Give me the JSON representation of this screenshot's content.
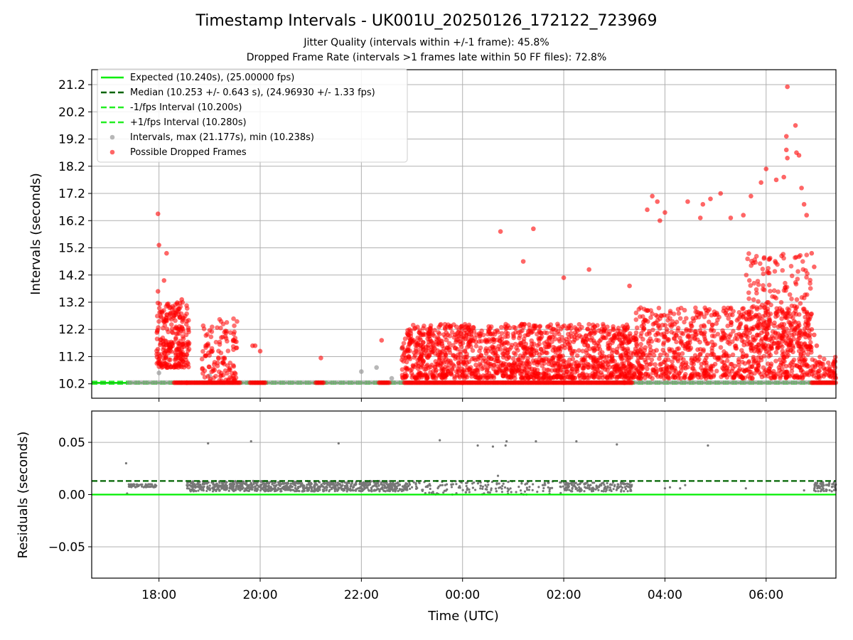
{
  "chart_data": [
    {
      "type": "scatter",
      "title": "Timestamp Intervals - UK001U_20250126_172122_723969",
      "subtitle_lines": [
        "Jitter Quality (intervals within +/-1 frame): 45.8%",
        "Dropped Frame Rate (intervals >1 frames late within 50 FF files): 72.8%"
      ],
      "xlabel": "",
      "ylabel": "Intervals (seconds)",
      "x_unit": "hours since 2025-01-26 00:00 UTC",
      "xlim": [
        16.67,
        31.38
      ],
      "ylim": [
        9.67,
        21.75
      ],
      "ytick_values": [
        10.2,
        11.2,
        12.2,
        13.2,
        14.2,
        15.2,
        16.2,
        17.2,
        18.2,
        19.2,
        20.2,
        21.2
      ],
      "ytick_labels": [
        "10.2",
        "11.2",
        "12.2",
        "13.2",
        "14.2",
        "15.2",
        "16.2",
        "17.2",
        "18.2",
        "19.2",
        "20.2",
        "21.2"
      ],
      "grid": true,
      "legend_placement": "upper-left",
      "legend": [
        {
          "label": "Expected (10.240s), (25.00000 fps)",
          "style": "solid",
          "color": "#00ee00"
        },
        {
          "label": "Median (10.253 +/- 0.643 s), (24.96930 +/- 1.33 fps)",
          "style": "dashed",
          "color": "#006400"
        },
        {
          "label": "-1/fps Interval (10.200s)",
          "style": "dashed",
          "color": "#22ee22"
        },
        {
          "label": "+1/fps Interval (10.280s)",
          "style": "dashed",
          "color": "#22ee22"
        },
        {
          "label": "Intervals, max (21.177s), min (10.238s)",
          "style": "marker",
          "color": "#999999"
        },
        {
          "label": "Possible Dropped Frames",
          "style": "marker",
          "color": "#ff0000"
        }
      ],
      "reference_lines": [
        {
          "name": "Expected",
          "y": 10.24,
          "color": "#00ee00",
          "style": "solid"
        },
        {
          "name": "Median",
          "y": 10.253,
          "color": "#006400",
          "style": "dashed"
        },
        {
          "name": "-1/fps Interval",
          "y": 10.2,
          "color": "#22ee22",
          "style": "dashed"
        },
        {
          "name": "+1/fps Interval",
          "y": 10.28,
          "color": "#22ee22",
          "style": "dashed"
        }
      ],
      "series": [
        {
          "name": "Intervals, max (21.177s), min (10.238s)",
          "color": "#999999",
          "x_range": [
            17.4,
            31.38
          ],
          "max": 21.177,
          "min": 10.238,
          "highlights": [
            [
              18.0,
              10.6
            ],
            [
              19.0,
              10.5
            ],
            [
              22.0,
              10.65
            ],
            [
              22.3,
              10.8
            ],
            [
              22.6,
              10.4
            ],
            [
              22.8,
              11.5
            ]
          ]
        },
        {
          "name": "Possible Dropped Frames",
          "color": "#ff0000",
          "baseline_y": 10.24,
          "baseline_segments": [
            [
              18.3,
              18.55
            ],
            [
              18.55,
              19.6
            ],
            [
              19.8,
              20.1
            ],
            [
              21.1,
              21.25
            ],
            [
              22.35,
              22.55
            ],
            [
              22.85,
              24.0
            ],
            [
              24.0,
              26.0
            ],
            [
              26.0,
              27.2
            ],
            [
              27.2,
              27.35
            ],
            [
              30.9,
              31.38
            ]
          ],
          "clusters": [
            {
              "x_range": [
                17.95,
                18.6
              ],
              "y_range": [
                10.8,
                13.2
              ],
              "count": 260
            },
            {
              "x_range": [
                18.85,
                19.55
              ],
              "y_range": [
                10.3,
                12.6
              ],
              "count": 120
            },
            {
              "x_range": [
                22.8,
                27.4
              ],
              "y_range": [
                10.4,
                12.4
              ],
              "count": 1400
            },
            {
              "x_range": [
                27.4,
                30.9
              ],
              "y_range": [
                10.4,
                13.0
              ],
              "count": 900
            },
            {
              "x_range": [
                29.6,
                30.9
              ],
              "y_range": [
                11.5,
                15.0
              ],
              "count": 220
            },
            {
              "x_range": [
                30.9,
                31.38
              ],
              "y_range": [
                10.4,
                11.2
              ],
              "count": 60
            }
          ],
          "outliers": [
            [
              17.98,
              16.45
            ],
            [
              18.0,
              15.3
            ],
            [
              18.15,
              15.0
            ],
            [
              18.1,
              14.0
            ],
            [
              17.98,
              13.6
            ],
            [
              18.45,
              13.3
            ],
            [
              19.85,
              11.6
            ],
            [
              19.9,
              11.6
            ],
            [
              20.0,
              11.4
            ],
            [
              21.2,
              11.15
            ],
            [
              22.4,
              11.8
            ],
            [
              24.75,
              15.8
            ],
            [
              25.4,
              15.9
            ],
            [
              25.2,
              14.7
            ],
            [
              26.0,
              14.1
            ],
            [
              26.5,
              14.4
            ],
            [
              27.3,
              13.8
            ],
            [
              27.75,
              17.1
            ],
            [
              27.65,
              16.6
            ],
            [
              27.85,
              16.9
            ],
            [
              28.0,
              16.5
            ],
            [
              27.9,
              16.2
            ],
            [
              28.45,
              16.9
            ],
            [
              28.75,
              16.8
            ],
            [
              28.7,
              16.3
            ],
            [
              28.9,
              17.0
            ],
            [
              29.1,
              17.2
            ],
            [
              29.3,
              16.3
            ],
            [
              29.55,
              16.4
            ],
            [
              29.7,
              17.1
            ],
            [
              29.9,
              17.6
            ],
            [
              30.0,
              18.1
            ],
            [
              30.2,
              17.7
            ],
            [
              30.35,
              17.8
            ],
            [
              30.42,
              21.12
            ],
            [
              30.4,
              19.3
            ],
            [
              30.4,
              18.8
            ],
            [
              30.42,
              18.5
            ],
            [
              30.58,
              19.7
            ],
            [
              30.6,
              18.7
            ],
            [
              30.65,
              18.6
            ],
            [
              30.7,
              17.4
            ],
            [
              30.8,
              16.4
            ],
            [
              30.75,
              16.8
            ],
            [
              30.9,
              15.0
            ],
            [
              30.95,
              14.5
            ],
            [
              30.9,
              12.2
            ],
            [
              30.95,
              12.0
            ],
            [
              31.0,
              11.6
            ],
            [
              31.05,
              11.0
            ]
          ]
        }
      ]
    },
    {
      "type": "scatter",
      "title": "",
      "xlabel": "Time (UTC)",
      "ylabel": "Residuals (seconds)",
      "x_unit": "hours since 2025-01-26 00:00 UTC",
      "xlim": [
        16.67,
        31.38
      ],
      "ylim": [
        -0.08,
        0.08
      ],
      "ytick_values": [
        0.05,
        0.0,
        -0.05
      ],
      "ytick_labels": [
        "0.05",
        "0.00",
        "−0.05"
      ],
      "xtick_values": [
        18,
        20,
        22,
        24,
        26,
        28,
        30
      ],
      "xtick_labels": [
        "18:00",
        "20:00",
        "22:00",
        "00:00",
        "02:00",
        "04:00",
        "06:00"
      ],
      "grid": true,
      "reference_lines": [
        {
          "name": "Expected",
          "y": 0.0,
          "color": "#00ee00",
          "style": "solid"
        },
        {
          "name": "Median",
          "y": 0.013,
          "color": "#006400",
          "style": "dashed"
        }
      ],
      "series": [
        {
          "name": "Residuals",
          "color": "#777777",
          "dense_bands": [
            {
              "x_range": [
                17.4,
                17.95
              ],
              "y_range": [
                0.007,
                0.01
              ],
              "count": 60
            },
            {
              "x_range": [
                18.55,
                22.95
              ],
              "y_range": [
                0.003,
                0.013
              ],
              "count": 900
            },
            {
              "x_range": [
                22.95,
                26.0
              ],
              "y_range": [
                0.0,
                0.013
              ],
              "count": 160
            },
            {
              "x_range": [
                26.0,
                27.35
              ],
              "y_range": [
                0.003,
                0.012
              ],
              "count": 160
            },
            {
              "x_range": [
                30.95,
                31.38
              ],
              "y_range": [
                0.003,
                0.012
              ],
              "count": 60
            }
          ],
          "outliers": [
            [
              17.35,
              0.03
            ],
            [
              17.37,
              0.001
            ],
            [
              18.97,
              0.049
            ],
            [
              19.82,
              0.051
            ],
            [
              21.55,
              0.049
            ],
            [
              23.55,
              0.052
            ],
            [
              24.3,
              0.047
            ],
            [
              24.6,
              0.046
            ],
            [
              24.85,
              0.047
            ],
            [
              24.87,
              0.051
            ],
            [
              25.45,
              0.051
            ],
            [
              26.25,
              0.051
            ],
            [
              27.05,
              0.048
            ],
            [
              28.85,
              0.047
            ],
            [
              30.75,
              0.004
            ],
            [
              24.7,
              0.018
            ],
            [
              27.3,
              0.007
            ],
            [
              28.0,
              0.006
            ],
            [
              28.1,
              0.007
            ],
            [
              28.3,
              0.006
            ],
            [
              28.4,
              0.009
            ],
            [
              29.6,
              0.006
            ]
          ]
        }
      ]
    }
  ]
}
